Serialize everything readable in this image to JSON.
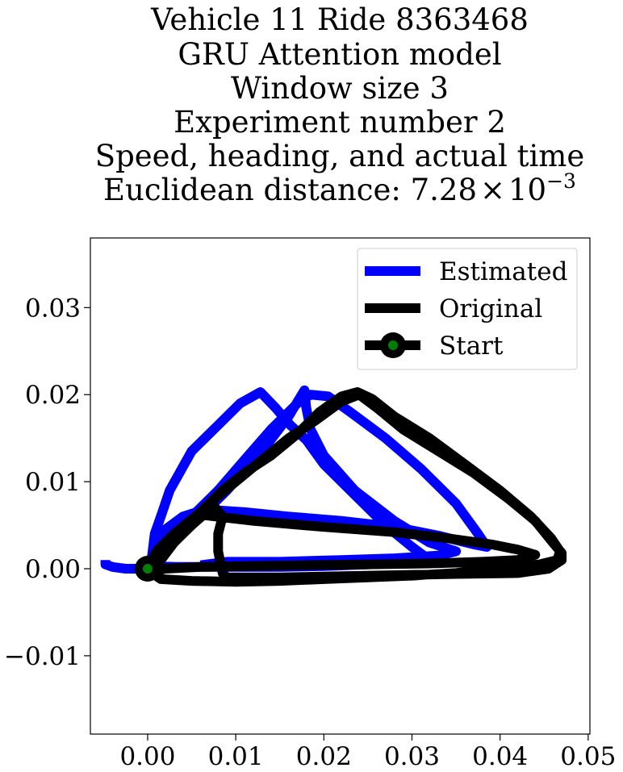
{
  "chart_data": {
    "type": "line",
    "title_lines": [
      "Vehicle 11 Ride 8363468",
      "GRU Attention model",
      "Window size 3",
      "Experiment number 2",
      "Speed, heading, and actual time"
    ],
    "title_metric": {
      "label": "Euclidean distance: ",
      "mantissa": "7.28",
      "times": "×",
      "base": "10",
      "exponent": "−3"
    },
    "xlabel": "",
    "ylabel": "",
    "xlim": [
      -0.0065,
      0.0502
    ],
    "ylim": [
      -0.019,
      0.038
    ],
    "xticks": [
      0.0,
      0.01,
      0.02,
      0.03,
      0.04,
      0.05
    ],
    "xtick_labels": [
      "0.00",
      "0.01",
      "0.02",
      "0.03",
      "0.04",
      "0.05"
    ],
    "yticks": [
      -0.01,
      0.0,
      0.01,
      0.02,
      0.03
    ],
    "ytick_labels": [
      "−0.01",
      "0.00",
      "0.01",
      "0.02",
      "0.03"
    ],
    "grid": false,
    "legend_position": "top-right",
    "series": [
      {
        "name": "Estimated",
        "color": "#0000ff",
        "points": [
          [
            -0.0048,
            0.001
          ],
          [
            -0.0048,
            0.0005
          ],
          [
            -0.004,
            0.0002
          ],
          [
            -0.0025,
            0.0
          ],
          [
            -0.001,
            0.0
          ],
          [
            0.0,
            0.0
          ],
          [
            0.0005,
            0.0015
          ],
          [
            0.0008,
            0.004
          ],
          [
            0.0015,
            0.006
          ],
          [
            0.0025,
            0.009
          ],
          [
            0.005,
            0.0135
          ],
          [
            0.008,
            0.0165
          ],
          [
            0.0105,
            0.019
          ],
          [
            0.0128,
            0.0203
          ],
          [
            0.0145,
            0.0185
          ],
          [
            0.0162,
            0.0165
          ],
          [
            0.018,
            0.0148
          ],
          [
            0.02,
            0.012
          ],
          [
            0.0235,
            0.0085
          ],
          [
            0.027,
            0.005
          ],
          [
            0.03,
            0.0025
          ],
          [
            0.032,
            0.001
          ],
          [
            0.03,
            0.0008
          ],
          [
            0.025,
            0.0005
          ],
          [
            0.02,
            0.0003
          ],
          [
            0.015,
            0.0002
          ],
          [
            0.01,
            0.0002
          ],
          [
            0.006,
            0.0002
          ],
          [
            0.003,
            0.0002
          ],
          [
            0.0015,
            0.0003
          ],
          [
            0.0012,
            0.002
          ],
          [
            0.002,
            0.0045
          ],
          [
            0.004,
            0.006
          ],
          [
            0.0065,
            0.0068
          ],
          [
            0.011,
            0.0065
          ],
          [
            0.016,
            0.006
          ],
          [
            0.022,
            0.0055
          ],
          [
            0.028,
            0.0048
          ],
          [
            0.033,
            0.0038
          ],
          [
            0.037,
            0.0028
          ],
          [
            0.0385,
            0.0025
          ],
          [
            0.0375,
            0.004
          ],
          [
            0.035,
            0.0075
          ],
          [
            0.031,
            0.0115
          ],
          [
            0.027,
            0.015
          ],
          [
            0.023,
            0.018
          ],
          [
            0.0205,
            0.0198
          ],
          [
            0.0185,
            0.02
          ],
          [
            0.017,
            0.019
          ],
          [
            0.014,
            0.016
          ],
          [
            0.011,
            0.0125
          ],
          [
            0.008,
            0.009
          ],
          [
            0.0055,
            0.0065
          ],
          [
            0.003,
            0.004
          ],
          [
            0.0012,
            0.0015
          ],
          [
            0.002,
            0.0025
          ],
          [
            0.005,
            0.005
          ],
          [
            0.009,
            0.009
          ],
          [
            0.013,
            0.0135
          ],
          [
            0.016,
            0.0175
          ],
          [
            0.0178,
            0.0205
          ],
          [
            0.018,
            0.0185
          ],
          [
            0.0185,
            0.016
          ],
          [
            0.02,
            0.013
          ],
          [
            0.0235,
            0.009
          ],
          [
            0.028,
            0.0055
          ],
          [
            0.032,
            0.003
          ],
          [
            0.035,
            0.002
          ],
          [
            0.033,
            0.0015
          ],
          [
            0.028,
            0.0012
          ],
          [
            0.022,
            0.001
          ],
          [
            0.015,
            0.0008
          ],
          [
            0.009,
            0.0008
          ],
          [
            0.006,
            0.0004
          ]
        ]
      },
      {
        "name": "Original",
        "color": "#000000",
        "points": [
          [
            0.0,
            0.0
          ],
          [
            0.001,
            0.002
          ],
          [
            0.003,
            0.004
          ],
          [
            0.006,
            0.0065
          ],
          [
            0.0085,
            0.009
          ],
          [
            0.011,
            0.011
          ],
          [
            0.014,
            0.013
          ],
          [
            0.017,
            0.0155
          ],
          [
            0.0195,
            0.018
          ],
          [
            0.022,
            0.0198
          ],
          [
            0.0238,
            0.0203
          ],
          [
            0.0255,
            0.0195
          ],
          [
            0.028,
            0.0175
          ],
          [
            0.032,
            0.015
          ],
          [
            0.036,
            0.012
          ],
          [
            0.04,
            0.009
          ],
          [
            0.0435,
            0.006
          ],
          [
            0.0458,
            0.0035
          ],
          [
            0.0468,
            0.002
          ],
          [
            0.0465,
            0.001
          ],
          [
            0.0445,
            0.0005
          ],
          [
            0.04,
            0.0
          ],
          [
            0.035,
            -0.0005
          ],
          [
            0.03,
            -0.0008
          ],
          [
            0.025,
            -0.001
          ],
          [
            0.02,
            -0.0012
          ],
          [
            0.015,
            -0.0014
          ],
          [
            0.01,
            -0.0015
          ],
          [
            0.005,
            -0.0014
          ],
          [
            0.0015,
            -0.0012
          ],
          [
            0.0005,
            -0.0005
          ],
          [
            0.0015,
            0.001
          ],
          [
            0.003,
            0.003
          ],
          [
            0.005,
            0.005
          ],
          [
            0.0075,
            0.0072
          ],
          [
            0.0085,
            0.006
          ],
          [
            0.008,
            0.004
          ],
          [
            0.008,
            0.002
          ],
          [
            0.0085,
            -0.0005
          ],
          [
            0.009,
            -0.001
          ],
          [
            0.015,
            -0.001
          ],
          [
            0.025,
            -0.0008
          ],
          [
            0.035,
            -0.0006
          ],
          [
            0.042,
            -0.0005
          ],
          [
            0.0455,
            0.0
          ],
          [
            0.047,
            0.001
          ],
          [
            0.047,
            0.0018
          ],
          [
            0.046,
            0.003
          ],
          [
            0.044,
            0.0055
          ],
          [
            0.041,
            0.008
          ],
          [
            0.037,
            0.011
          ],
          [
            0.033,
            0.0135
          ],
          [
            0.029,
            0.016
          ],
          [
            0.026,
            0.0185
          ],
          [
            0.024,
            0.02
          ],
          [
            0.022,
            0.0192
          ],
          [
            0.019,
            0.017
          ],
          [
            0.016,
            0.015
          ],
          [
            0.013,
            0.0125
          ],
          [
            0.01,
            0.01
          ],
          [
            0.007,
            0.0075
          ],
          [
            0.006,
            0.0062
          ],
          [
            0.012,
            0.0055
          ],
          [
            0.02,
            0.0048
          ],
          [
            0.028,
            0.0042
          ],
          [
            0.034,
            0.0035
          ],
          [
            0.039,
            0.0028
          ],
          [
            0.042,
            0.0022
          ],
          [
            0.044,
            0.0016
          ],
          [
            0.042,
            0.001
          ],
          [
            0.038,
            0.0008
          ],
          [
            0.032,
            0.0006
          ],
          [
            0.025,
            0.0005
          ],
          [
            0.018,
            0.0004
          ],
          [
            0.011,
            0.0003
          ],
          [
            0.006,
            0.0002
          ],
          [
            0.002,
            0.0
          ],
          [
            0.0005,
            -0.0004
          ]
        ]
      }
    ],
    "start": {
      "name": "Start",
      "x": 0.0,
      "y": 0.0,
      "marker_color": "#008000",
      "edge_color": "#000000"
    }
  }
}
